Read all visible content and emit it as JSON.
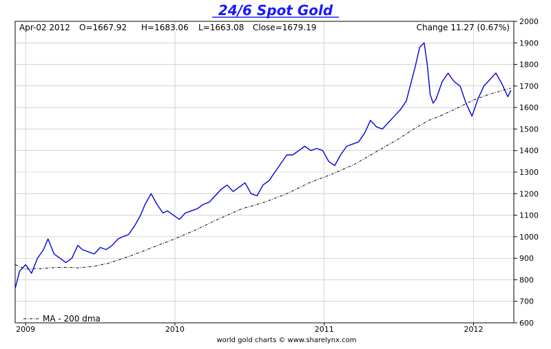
{
  "header": {
    "title": "24/6 Spot Gold",
    "date": "Apr-02  2012",
    "open": "O=1667.92",
    "high": "H=1683.06",
    "low": "L=1663.08",
    "close": "Close=1679.19",
    "change": "Change 11.27 (0.67%)"
  },
  "legend": {
    "ma_label": "MA - 200 dma"
  },
  "footer": {
    "credit": "world gold charts © www.sharelynx.com"
  },
  "colors": {
    "price": "#0000dd",
    "ma": "#000000",
    "title": "#1a1aff",
    "grid": "#bbbbbb"
  },
  "chart_data": {
    "type": "line",
    "title": "24/6 Spot Gold",
    "xlabel": "",
    "ylabel": "",
    "xlim": [
      2008.93,
      2012.27
    ],
    "ylim": [
      600,
      2000
    ],
    "x_ticks": [
      2009,
      2010,
      2011,
      2012
    ],
    "x_tick_labels": [
      "2009",
      "2010",
      "2011",
      "2012"
    ],
    "y_ticks": [
      600,
      700,
      800,
      900,
      1000,
      1100,
      1200,
      1300,
      1400,
      1500,
      1600,
      1700,
      1800,
      1900,
      2000
    ],
    "grid": true,
    "legend_position": "bottom-left",
    "series": [
      {
        "style": "solid",
        "color": "#0000dd",
        "x": [
          2008.93,
          2008.96,
          2009.0,
          2009.04,
          2009.08,
          2009.12,
          2009.15,
          2009.19,
          2009.23,
          2009.27,
          2009.31,
          2009.35,
          2009.38,
          2009.42,
          2009.46,
          2009.5,
          2009.54,
          2009.58,
          2009.62,
          2009.65,
          2009.69,
          2009.73,
          2009.77,
          2009.8,
          2009.84,
          2009.88,
          2009.92,
          2009.95,
          2009.99,
          2010.03,
          2010.07,
          2010.11,
          2010.15,
          2010.19,
          2010.23,
          2010.27,
          2010.31,
          2010.35,
          2010.39,
          2010.43,
          2010.47,
          2010.51,
          2010.55,
          2010.59,
          2010.63,
          2010.67,
          2010.71,
          2010.75,
          2010.79,
          2010.83,
          2010.87,
          2010.91,
          2010.95,
          2010.99,
          2011.03,
          2011.07,
          2011.11,
          2011.15,
          2011.19,
          2011.23,
          2011.27,
          2011.31,
          2011.35,
          2011.39,
          2011.43,
          2011.47,
          2011.51,
          2011.55,
          2011.58,
          2011.61,
          2011.64,
          2011.67,
          2011.69,
          2011.71,
          2011.73,
          2011.75,
          2011.79,
          2011.83,
          2011.87,
          2011.91,
          2011.95,
          2011.99,
          2012.03,
          2012.07,
          2012.11,
          2012.15,
          2012.19,
          2012.23,
          2012.25
        ],
        "y": [
          760,
          840,
          870,
          830,
          900,
          940,
          990,
          920,
          900,
          880,
          900,
          960,
          940,
          930,
          920,
          950,
          940,
          960,
          990,
          1000,
          1010,
          1050,
          1100,
          1150,
          1200,
          1150,
          1110,
          1120,
          1100,
          1080,
          1110,
          1120,
          1130,
          1150,
          1160,
          1190,
          1220,
          1240,
          1210,
          1230,
          1250,
          1200,
          1190,
          1240,
          1260,
          1300,
          1340,
          1380,
          1380,
          1400,
          1420,
          1400,
          1410,
          1400,
          1350,
          1330,
          1380,
          1420,
          1430,
          1440,
          1480,
          1540,
          1510,
          1500,
          1530,
          1560,
          1590,
          1630,
          1710,
          1790,
          1880,
          1900,
          1800,
          1660,
          1620,
          1640,
          1720,
          1760,
          1720,
          1700,
          1620,
          1560,
          1640,
          1700,
          1730,
          1760,
          1710,
          1650,
          1680
        ]
      },
      {
        "name": "MA - 200 dma",
        "style": "dashdot",
        "color": "#000000",
        "x": [
          2008.93,
          2009.0,
          2009.1,
          2009.2,
          2009.28,
          2009.35,
          2009.45,
          2009.55,
          2009.7,
          2009.85,
          2010.0,
          2010.15,
          2010.3,
          2010.45,
          2010.6,
          2010.75,
          2010.9,
          2011.05,
          2011.2,
          2011.35,
          2011.5,
          2011.6,
          2011.7,
          2011.8,
          2011.9,
          2012.0,
          2012.1,
          2012.2,
          2012.25
        ],
        "y": [
          870,
          850,
          852,
          857,
          858,
          855,
          862,
          876,
          910,
          950,
          990,
          1035,
          1085,
          1130,
          1160,
          1200,
          1250,
          1290,
          1335,
          1395,
          1455,
          1500,
          1540,
          1568,
          1600,
          1635,
          1660,
          1680,
          1690
        ]
      }
    ]
  }
}
